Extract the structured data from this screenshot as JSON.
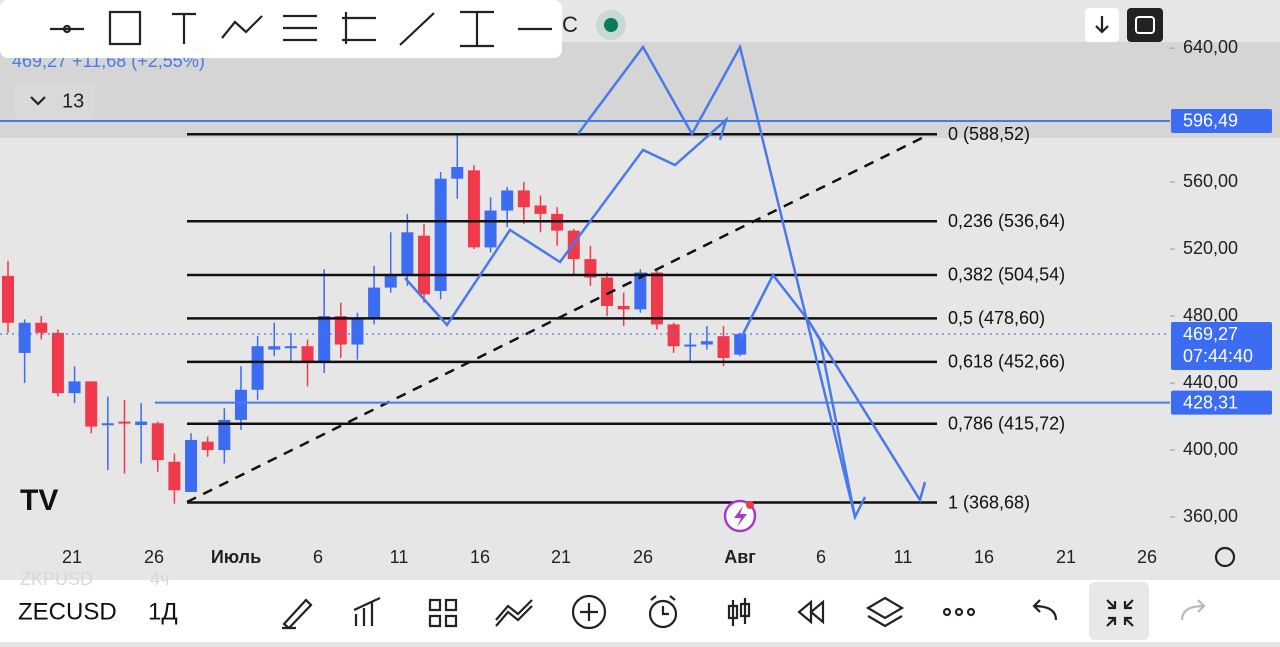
{
  "toolbar_partial": "C",
  "info": {
    "quote": "469,27 +11,68 (+2,55%)",
    "count": "13"
  },
  "chart_data": {
    "type": "candlestick",
    "candles": [
      {
        "o": 504,
        "h": 513,
        "l": 470,
        "c": 476
      },
      {
        "o": 458,
        "h": 478,
        "l": 440,
        "c": 476
      },
      {
        "o": 476,
        "h": 480,
        "l": 466,
        "c": 470
      },
      {
        "o": 470,
        "h": 472,
        "l": 432,
        "c": 434
      },
      {
        "o": 434,
        "h": 450,
        "l": 428,
        "c": 441
      },
      {
        "o": 441,
        "h": 441,
        "l": 410,
        "c": 414
      },
      {
        "o": 415,
        "h": 432,
        "l": 388,
        "c": 416
      },
      {
        "o": 417,
        "h": 430,
        "l": 386,
        "c": 416
      },
      {
        "o": 415,
        "h": 428,
        "l": 392,
        "c": 417
      },
      {
        "o": 416,
        "h": 417,
        "l": 387,
        "c": 394
      },
      {
        "o": 393,
        "h": 398,
        "l": 368,
        "c": 376
      },
      {
        "o": 375,
        "h": 410,
        "l": 375,
        "c": 406
      },
      {
        "o": 405,
        "h": 408,
        "l": 396,
        "c": 400
      },
      {
        "o": 400,
        "h": 425,
        "l": 392,
        "c": 418
      },
      {
        "o": 418,
        "h": 450,
        "l": 412,
        "c": 436
      },
      {
        "o": 436,
        "h": 468,
        "l": 430,
        "c": 462
      },
      {
        "o": 460,
        "h": 476,
        "l": 456,
        "c": 462
      },
      {
        "o": 461,
        "h": 470,
        "l": 452,
        "c": 462
      },
      {
        "o": 462,
        "h": 466,
        "l": 438,
        "c": 452
      },
      {
        "o": 452,
        "h": 508,
        "l": 446,
        "c": 480
      },
      {
        "o": 480,
        "h": 488,
        "l": 455,
        "c": 463
      },
      {
        "o": 463,
        "h": 482,
        "l": 454,
        "c": 478
      },
      {
        "o": 478,
        "h": 510,
        "l": 475,
        "c": 497
      },
      {
        "o": 497,
        "h": 530,
        "l": 494,
        "c": 505
      },
      {
        "o": 505,
        "h": 541,
        "l": 498,
        "c": 530
      },
      {
        "o": 528,
        "h": 535,
        "l": 488,
        "c": 493
      },
      {
        "o": 495,
        "h": 566,
        "l": 490,
        "c": 562
      },
      {
        "o": 562,
        "h": 588,
        "l": 550,
        "c": 569
      },
      {
        "o": 567,
        "h": 570,
        "l": 520,
        "c": 521
      },
      {
        "o": 521,
        "h": 551,
        "l": 518,
        "c": 543
      },
      {
        "o": 543,
        "h": 557,
        "l": 533,
        "c": 555
      },
      {
        "o": 555,
        "h": 560,
        "l": 535,
        "c": 545
      },
      {
        "o": 546,
        "h": 552,
        "l": 530,
        "c": 541
      },
      {
        "o": 541,
        "h": 545,
        "l": 522,
        "c": 531
      },
      {
        "o": 531,
        "h": 532,
        "l": 505,
        "c": 514
      },
      {
        "o": 514,
        "h": 522,
        "l": 498,
        "c": 503
      },
      {
        "o": 503,
        "h": 506,
        "l": 480,
        "c": 486
      },
      {
        "o": 486,
        "h": 494,
        "l": 474,
        "c": 484
      },
      {
        "o": 484,
        "h": 508,
        "l": 482,
        "c": 506
      },
      {
        "o": 506,
        "h": 507,
        "l": 472,
        "c": 475
      },
      {
        "o": 475,
        "h": 476,
        "l": 458,
        "c": 462
      },
      {
        "o": 462,
        "h": 470,
        "l": 452,
        "c": 463
      },
      {
        "o": 463,
        "h": 474,
        "l": 460,
        "c": 465
      },
      {
        "o": 468,
        "h": 474,
        "l": 450,
        "c": 455
      },
      {
        "o": 457,
        "h": 470,
        "l": 456,
        "c": 469.27
      }
    ],
    "up_color": "#3b6cf2",
    "down_color": "#f03a4c",
    "ylim": [
      346.3,
      668.7
    ],
    "yticks": [
      {
        "value": 640,
        "label": "640,00"
      },
      {
        "value": 560,
        "label": "560,00"
      },
      {
        "value": 520,
        "label": "520,00"
      },
      {
        "value": 480,
        "label": "480,00"
      },
      {
        "value": 440,
        "label": "440,00"
      },
      {
        "value": 400,
        "label": "400,00"
      },
      {
        "value": 360,
        "label": "360,00"
      }
    ],
    "x_labels": [
      "21",
      "26",
      "Июль",
      "6",
      "11",
      "16",
      "21",
      "26",
      "Авг",
      "6",
      "11",
      "16",
      "21",
      "26"
    ],
    "fib_levels": [
      {
        "value": 588.52,
        "label": "0 (588,52)"
      },
      {
        "value": 536.64,
        "label": "0,236 (536,64)"
      },
      {
        "value": 504.54,
        "label": "0,382 (504,54)"
      },
      {
        "value": 478.6,
        "label": "0,5 (478,60)"
      },
      {
        "value": 452.66,
        "label": "0,618 (452,66)"
      },
      {
        "value": 415.72,
        "label": "0,786 (415,72)"
      },
      {
        "value": 368.68,
        "label": "1 (368,68)"
      }
    ],
    "price_tags": [
      {
        "value": 596.49,
        "label": "596,49"
      },
      {
        "value": 469.27,
        "label": "469,27",
        "time": "07:44:40"
      },
      {
        "value": 428.31,
        "label": "428,31"
      }
    ]
  },
  "bottom": {
    "prev_symbol": "ZKPUSD",
    "prev_interval": "4ч",
    "symbol": "ZECUSD",
    "interval": "1Д"
  }
}
